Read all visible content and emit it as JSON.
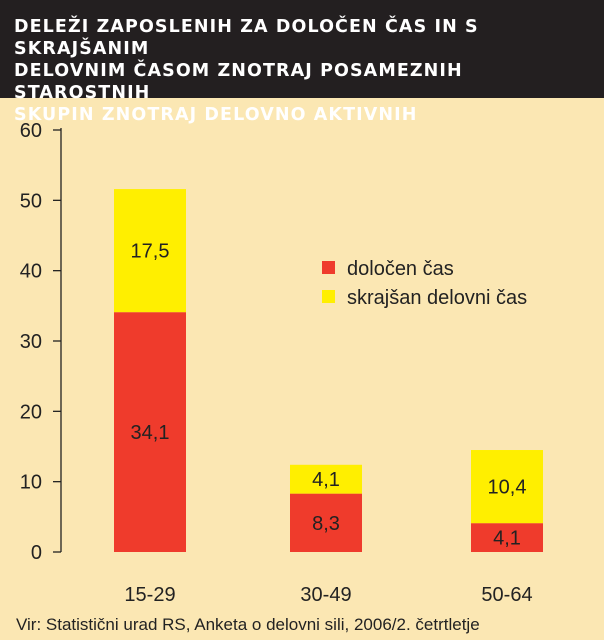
{
  "chart_data": {
    "type": "bar",
    "stacked": true,
    "title": "DELEŽI ZAPOSLENIH ZA DOLOČEN ČAS IN S SKRAJŠANIM\nDELOVNIM ČASOM ZNOTRAJ POSAMEZNIH STAROSTNIH\nSKUPIN ZNOTRAJ DELOVNO AKTIVNIH",
    "categories": [
      "15-29",
      "30-49",
      "50-64"
    ],
    "series": [
      {
        "name": "določen čas",
        "values": [
          34.1,
          8.3,
          4.1
        ],
        "labels": [
          "34,1",
          "8,3",
          "4,1"
        ],
        "color": "#ef3b2c"
      },
      {
        "name": "skrajšan delovni čas",
        "values": [
          17.5,
          4.1,
          10.4
        ],
        "labels": [
          "17,5",
          "4,1",
          "10,4"
        ],
        "color": "#ffef00"
      }
    ],
    "ylim": [
      0,
      60
    ],
    "yticks": [
      0,
      10,
      20,
      30,
      40,
      50,
      60
    ],
    "ytick_labels": [
      "0",
      "10",
      "20",
      "30",
      "40",
      "50",
      "60"
    ],
    "legend_position": "right",
    "grid": false
  },
  "source": "Vir: Statistični urad RS, Anketa o delovni sili, 2006/2. četrtletje"
}
